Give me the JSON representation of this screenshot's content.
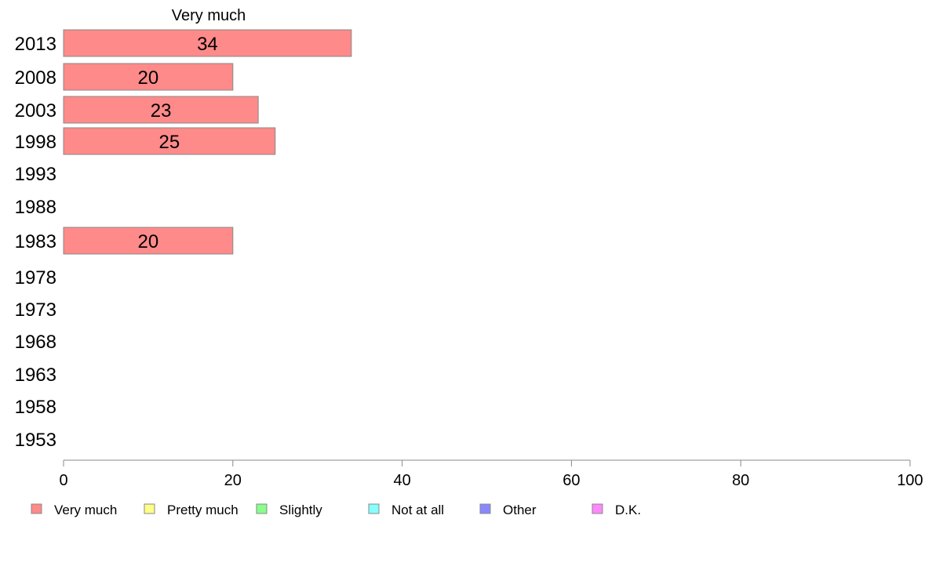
{
  "chart_data": {
    "type": "bar",
    "orientation": "horizontal",
    "title": "",
    "column_title": "Very much",
    "categories": [
      "2013",
      "2008",
      "2003",
      "1998",
      "1993",
      "1988",
      "1983",
      "1978",
      "1973",
      "1968",
      "1963",
      "1958",
      "1953"
    ],
    "series": [
      {
        "name": "Very much",
        "color": "#ff8a8a",
        "values": [
          34,
          20,
          23,
          25,
          null,
          null,
          20,
          null,
          null,
          null,
          null,
          null,
          null
        ]
      }
    ],
    "xlim": [
      0,
      100
    ],
    "xticks": [
      "0",
      "20",
      "40",
      "60",
      "80",
      "100"
    ],
    "grid": false,
    "legend_position": "bottom",
    "legend": [
      {
        "label": "Very much",
        "color": "#ff8a8a"
      },
      {
        "label": "Pretty much",
        "color": "#ffff88"
      },
      {
        "label": "Slightly",
        "color": "#88ff88"
      },
      {
        "label": "Not at all",
        "color": "#88ffff"
      },
      {
        "label": "Other",
        "color": "#8888ff"
      },
      {
        "label": "D.K.",
        "color": "#ff88ff"
      }
    ]
  }
}
